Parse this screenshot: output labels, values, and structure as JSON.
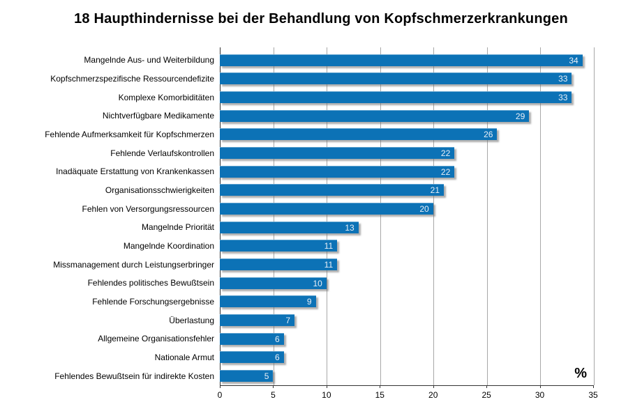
{
  "title": "18 Haupthindernisse bei der Behandlung von Kopfschmerzerkrankungen",
  "chart_data": {
    "type": "bar",
    "orientation": "horizontal",
    "title": "18 Haupthindernisse bei der Behandlung von Kopfschmerzerkrankungen",
    "categories": [
      "Mangelnde Aus- und Weiterbildung",
      "Kopfschmerzspezifische Ressourcendefizite",
      "Komplexe Komorbiditäten",
      "Nichtverfügbare Medikamente",
      "Fehlende Aufmerksamkeit für Kopfschmerzen",
      "Fehlende Verlaufskontrollen",
      "Inadäquate Erstattung von Krankenkassen",
      "Organisationsschwierigkeiten",
      "Fehlen von Versorgungsressourcen",
      "Mangelnde Priorität",
      "Mangelnde Koordination",
      "Missmanagement durch Leistungserbringer",
      "Fehlendes politisches Bewußtsein",
      "Fehlende Forschungsergebnisse",
      "Überlastung",
      "Allgemeine Organisationsfehler",
      "Nationale Armut",
      "Fehlendes Bewußtsein für indirekte Kosten"
    ],
    "values": [
      34,
      33,
      33,
      29,
      26,
      22,
      22,
      21,
      20,
      13,
      11,
      11,
      10,
      9,
      7,
      6,
      6,
      5
    ],
    "xlabel": "%",
    "ylabel": "",
    "xlim": [
      0,
      35
    ],
    "xticks": [
      0,
      5,
      10,
      15,
      20,
      25,
      30,
      35
    ],
    "grid": true,
    "legend": false,
    "bar_color": "#0c72b6",
    "value_label_color": "#e9eff7",
    "gridline_color": "#a8a8a8",
    "axis_color": "#333333"
  }
}
